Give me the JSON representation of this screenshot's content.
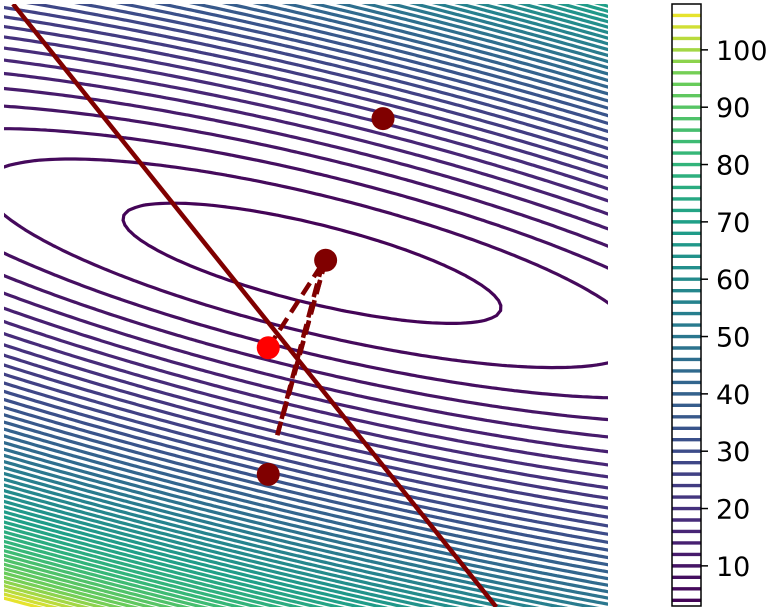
{
  "chart_data": {
    "type": "contour",
    "title": "",
    "xlabel": "",
    "ylabel": "",
    "axes_visible": false,
    "grid": false,
    "colormap": "viridis",
    "color_range": [
      3,
      108
    ],
    "contour_levels": [
      4,
      6,
      8,
      10,
      12,
      14,
      16,
      18,
      20,
      22,
      24,
      26,
      28,
      30,
      32,
      34,
      36,
      38,
      40,
      42,
      44,
      46,
      48,
      50,
      52,
      54,
      56,
      58,
      60,
      62,
      64,
      66,
      68,
      70,
      72,
      74,
      76,
      78,
      80,
      82,
      84,
      86,
      88,
      90,
      92,
      94,
      96,
      98,
      100,
      102,
      104,
      106
    ],
    "colorbar": {
      "position": "right",
      "ticks": [
        10,
        20,
        30,
        40,
        50,
        60,
        70,
        80,
        90,
        100
      ],
      "tick_labels": [
        "10",
        "20",
        "30",
        "40",
        "50",
        "60",
        "70",
        "80",
        "90",
        "100"
      ]
    },
    "constraint_line": {
      "color": "#800000",
      "points": [
        [
          -0.97,
          1.0
        ],
        [
          0.63,
          -1.0
        ]
      ]
    },
    "markers": [
      {
        "x": -0.125,
        "y": -0.56,
        "color": "#800000"
      },
      {
        "x": 0.065,
        "y": 0.15,
        "color": "#800000"
      },
      {
        "x": 0.255,
        "y": 0.62,
        "color": "#800000"
      },
      {
        "x": -0.125,
        "y": -0.14,
        "color": "#ff0000"
      }
    ],
    "dashed_paths": [
      {
        "color": "#800000",
        "points": [
          [
            -0.125,
            -0.14
          ],
          [
            0.055,
            0.14
          ]
        ]
      },
      {
        "color": "#800000",
        "points": [
          [
            0.055,
            0.14
          ],
          [
            -0.095,
            -0.43
          ]
        ]
      },
      {
        "color": "#800000",
        "points": [
          [
            -0.095,
            -0.43
          ],
          [
            0.065,
            0.15
          ]
        ]
      },
      {
        "color": "#800000",
        "points": [
          [
            0.065,
            0.15
          ],
          [
            -0.08,
            -0.38
          ]
        ]
      }
    ],
    "x_range": [
      -1,
      1
    ],
    "y_range": [
      -1,
      1
    ]
  }
}
